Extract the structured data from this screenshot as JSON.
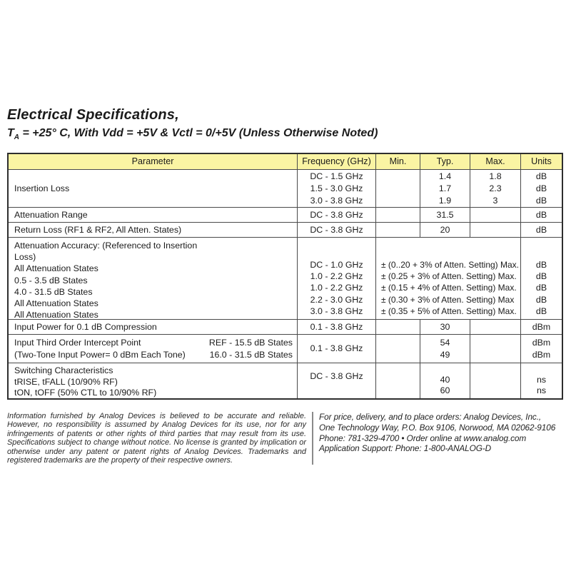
{
  "title": {
    "line1": "Electrical Specifications,",
    "line2_t": "T",
    "line2_sub": "A",
    "line2_rest": " = +25° C, With Vdd = +5V & Vctl = 0/+5V (Unless Otherwise Noted)"
  },
  "colors": {
    "header_bg": "#FAF4A3",
    "table_border": "#2E2E2E",
    "grid_line": "#4A4A4A",
    "text": "#1B1B1B",
    "footer_divider": "#8A8A8A"
  },
  "table": {
    "headers": [
      "Parameter",
      "Frequency (GHz)",
      "Min.",
      "Typ.",
      "Max.",
      "Units"
    ],
    "rows": {
      "insertion_loss": {
        "param": "Insertion Loss",
        "freq": [
          "DC - 1.5 GHz",
          "1.5 - 3.0 GHz",
          "3.0 - 3.8 GHz"
        ],
        "typ": [
          "1.4",
          "1.7",
          "1.9"
        ],
        "max": [
          "1.8",
          "2.3",
          "3"
        ],
        "units": [
          "dB",
          "dB",
          "dB"
        ]
      },
      "attenuation_range": {
        "param": "Attenuation Range",
        "freq": "DC - 3.8 GHz",
        "typ": "31.5",
        "units": "dB"
      },
      "return_loss": {
        "param": "Return Loss (RF1 & RF2, All Atten. States)",
        "freq": "DC - 3.8 GHz",
        "typ": "20",
        "units": "dB"
      },
      "attenuation_accuracy": {
        "param": [
          "Attenuation Accuracy: (Referenced to Insertion",
          "Loss)",
          "All Attenuation States",
          "0.5 - 3.5 dB States",
          "4.0 - 31.5 dB States",
          "All Attenuation States",
          "All Attenuation States"
        ],
        "freq": [
          "DC - 1.0 GHz",
          "1.0 - 2.2 GHz",
          "1.0 - 2.2 GHz",
          "2.2 - 3.0 GHz",
          "3.0 - 3.8 GHz"
        ],
        "value": [
          "± (0..20 + 3% of Atten. Setting) Max.",
          "± (0.25 + 3% of Atten. Setting) Max.",
          "± (0.15 + 4% of Atten. Setting) Max.",
          "± (0.30 + 3% of Atten. Setting) Max",
          "± (0.35 + 5% of Atten. Setting) Max."
        ],
        "units": [
          "dB",
          "dB",
          "dB",
          "dB",
          "dB"
        ]
      },
      "input_power_compression": {
        "param": "Input Power for 0.1 dB Compression",
        "freq": "0.1 - 3.8 GHz",
        "typ": "30",
        "units": "dBm"
      },
      "third_order_intercept": {
        "param_left": [
          "Input Third Order Intercept Point",
          "(Two-Tone Input Power= 0 dBm Each Tone)"
        ],
        "param_right": [
          "REF - 15.5 dB States",
          "16.0 - 31.5 dB States"
        ],
        "freq": "0.1 - 3.8 GHz",
        "typ": [
          "54",
          "49"
        ],
        "units": [
          "dBm",
          "dBm"
        ]
      },
      "switching_characteristics": {
        "param": [
          "Switching Characteristics",
          "tRISE, tFALL (10/90% RF)",
          "tON, tOFF (50% CTL to 10/90% RF)"
        ],
        "freq": "DC - 3.8 GHz",
        "typ": [
          "40",
          "60"
        ],
        "units": [
          "ns",
          "ns"
        ]
      }
    }
  },
  "footer": {
    "legal": "Information furnished by Analog Devices is believed to be accurate and reliable. However, no responsibility is assumed by Analog Devices for its use, nor for any infringements of patents or other rights of third parties that may result from its use. Specifications subject to change without notice. No license is granted by implication or otherwise under any patent or patent rights of Analog Devices. Trademarks and registered trademarks are the property of their respective owners.",
    "contact_lines": [
      "For price, delivery, and to place orders: Analog Devices, Inc.,",
      "One Technology Way, P.O. Box 9106, Norwood, MA 02062-9106",
      "Phone: 781-329-4700 • Order online at www.analog.com",
      "Application Support: Phone: 1-800-ANALOG-D"
    ]
  }
}
